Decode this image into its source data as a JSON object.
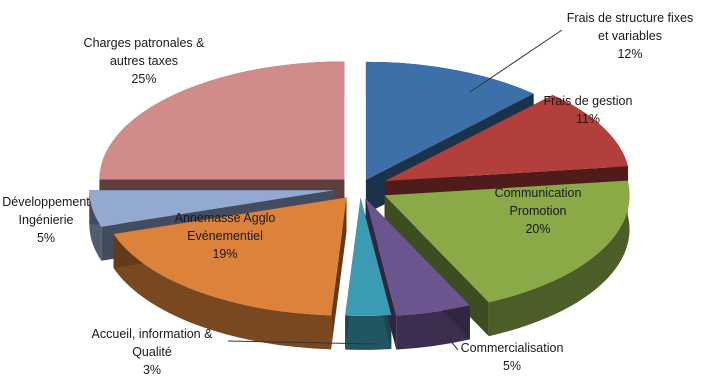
{
  "chart_data": {
    "type": "pie",
    "style": "3d-exploded",
    "title": "",
    "legend": "none",
    "slices": [
      {
        "lines": [
          "Frais de structure fixes",
          "et variables"
        ],
        "value_label": "12%",
        "value": 12,
        "color": "#3d6fa8"
      },
      {
        "lines": [
          "Frais de gestion"
        ],
        "value_label": "11%",
        "value": 11,
        "color": "#b23f3c"
      },
      {
        "lines": [
          "Communication",
          "Promotion"
        ],
        "value_label": "20%",
        "value": 20,
        "color": "#8aaa48"
      },
      {
        "lines": [
          "Commercialisation"
        ],
        "value_label": "5%",
        "value": 5,
        "color": "#6c548f"
      },
      {
        "lines": [
          "Accueil, information &",
          "Qualité"
        ],
        "value_label": "3%",
        "value": 3,
        "color": "#3a9bb3"
      },
      {
        "lines": [
          "Annemasse Agglo",
          "Evénementiel"
        ],
        "value_label": "19%",
        "value": 19,
        "color": "#dc823a"
      },
      {
        "lines": [
          "Développement",
          "Ingénierie"
        ],
        "value_label": "5%",
        "value": 5,
        "color": "#93a9d1"
      },
      {
        "lines": [
          "Charges patronales &",
          "autres taxes"
        ],
        "value_label": "25%",
        "value": 25,
        "color": "#cf8c8a"
      }
    ]
  }
}
